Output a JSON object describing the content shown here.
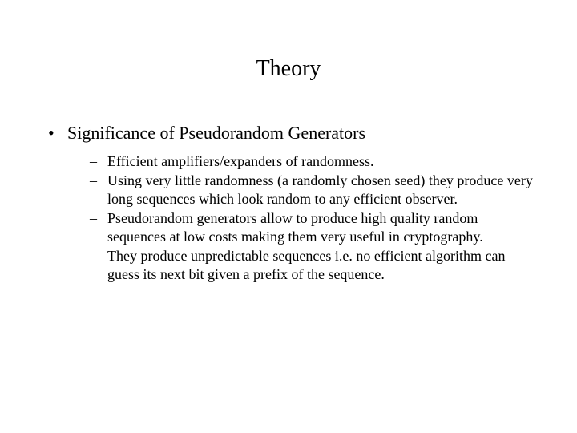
{
  "slide": {
    "title": "Theory",
    "background_color": "#ffffff",
    "text_color": "#000000",
    "title_fontsize": 28,
    "body_fontsize_level1": 22,
    "body_fontsize_level2": 18,
    "font_family": "Times New Roman",
    "level1": {
      "bullet_char": "•",
      "items": [
        {
          "text": "Significance of Pseudorandom Generators",
          "level2": {
            "bullet_char": "–",
            "items": [
              {
                "text": "Efficient amplifiers/expanders of randomness."
              },
              {
                "text": "Using very little randomness (a randomly chosen seed) they produce very long sequences which look random to any efficient observer."
              },
              {
                "text": "Pseudorandom generators allow to produce high quality random sequences at low costs making them very useful in cryptography."
              },
              {
                "text": "They produce unpredictable sequences i.e. no efficient algorithm can guess its next bit given a prefix of the sequence."
              }
            ]
          }
        }
      ]
    }
  }
}
